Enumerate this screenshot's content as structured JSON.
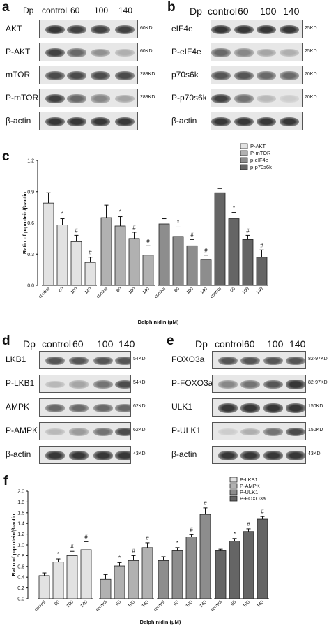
{
  "panel_a": {
    "letter": "a",
    "header": [
      "Dp",
      "control",
      "60",
      "100",
      "140"
    ],
    "rows": [
      {
        "label": "AKT",
        "size": "60KD",
        "levels": [
          0.85,
          0.8,
          0.8,
          0.8
        ]
      },
      {
        "label": "P-AKT",
        "size": "60KD",
        "levels": [
          0.8,
          0.6,
          0.4,
          0.25
        ]
      },
      {
        "label": "mTOR",
        "size": "289KD",
        "levels": [
          0.75,
          0.75,
          0.75,
          0.75
        ]
      },
      {
        "label": "P-mTOR",
        "size": "289KD",
        "levels": [
          0.8,
          0.6,
          0.45,
          0.3
        ]
      },
      {
        "label": "β-actin",
        "size": "",
        "levels": [
          0.85,
          0.85,
          0.85,
          0.85
        ]
      }
    ]
  },
  "panel_b": {
    "letter": "b",
    "header": [
      "Dp",
      "control",
      "60",
      "100",
      "140"
    ],
    "rows": [
      {
        "label": "eIF4e",
        "size": "25KD",
        "levels": [
          0.85,
          0.85,
          0.85,
          0.85
        ]
      },
      {
        "label": "P-eIF4e",
        "size": "25KD",
        "levels": [
          0.6,
          0.45,
          0.3,
          0.25
        ]
      },
      {
        "label": "p70s6k",
        "size": "70KD",
        "levels": [
          0.7,
          0.7,
          0.6,
          0.6
        ]
      },
      {
        "label": "P-p70s6k",
        "size": "70KD",
        "levels": [
          0.8,
          0.55,
          0.2,
          0.1
        ]
      },
      {
        "label": "β-actin",
        "size": "",
        "levels": [
          0.85,
          0.85,
          0.85,
          0.85
        ]
      }
    ]
  },
  "panel_d": {
    "letter": "d",
    "header": [
      "Dp",
      "control",
      "60",
      "100",
      "140"
    ],
    "rows": [
      {
        "label": "LKB1",
        "size": "54KD",
        "levels": [
          0.7,
          0.7,
          0.7,
          0.7
        ]
      },
      {
        "label": "P-LKB1",
        "size": "54KD",
        "levels": [
          0.2,
          0.3,
          0.55,
          0.75
        ]
      },
      {
        "label": "AMPK",
        "size": "62KD",
        "levels": [
          0.6,
          0.6,
          0.6,
          0.6
        ]
      },
      {
        "label": "P-AMPK",
        "size": "62KD",
        "levels": [
          0.2,
          0.35,
          0.55,
          0.75
        ]
      },
      {
        "label": "β-actin",
        "size": "43KD",
        "levels": [
          0.85,
          0.85,
          0.85,
          0.85
        ]
      }
    ]
  },
  "panel_e": {
    "letter": "e",
    "header": [
      "Dp",
      "control",
      "60",
      "100",
      "140"
    ],
    "rows": [
      {
        "label": "FOXO3a",
        "size": "82-97KD",
        "levels": [
          0.7,
          0.7,
          0.7,
          0.7
        ]
      },
      {
        "label": "P-FOXO3a",
        "size": "82-97KD",
        "levels": [
          0.45,
          0.55,
          0.7,
          0.85
        ]
      },
      {
        "label": "ULK1",
        "size": "150KD",
        "levels": [
          0.85,
          0.85,
          0.85,
          0.85
        ]
      },
      {
        "label": "P-ULK1",
        "size": "150KD",
        "levels": [
          0.1,
          0.25,
          0.55,
          0.75
        ]
      },
      {
        "label": "β-actin",
        "size": "43KD",
        "levels": [
          0.85,
          0.85,
          0.85,
          0.85
        ]
      }
    ]
  },
  "chart_data": [
    {
      "panel_letter": "c",
      "type": "bar",
      "xlabel": "Delphinidin (μM)",
      "ylabel": "Ratio of p-protein/β-actin",
      "ylim": [
        0,
        1.2
      ],
      "yticks": [
        0.0,
        0.3,
        0.6,
        0.9,
        1.2
      ],
      "categories": [
        "control",
        "60",
        "100",
        "140"
      ],
      "legend_position": "top-right",
      "series": [
        {
          "name": "P-AKT",
          "color": "#e2e2e2",
          "values": [
            0.79,
            0.58,
            0.42,
            0.22
          ],
          "errors": [
            0.1,
            0.06,
            0.06,
            0.05
          ],
          "marks": [
            "",
            "*",
            "#",
            "#"
          ]
        },
        {
          "name": "P-mTOR",
          "color": "#b1b1b1",
          "values": [
            0.65,
            0.57,
            0.45,
            0.29
          ],
          "errors": [
            0.12,
            0.09,
            0.06,
            0.09
          ],
          "marks": [
            "",
            "*",
            "#",
            "#"
          ]
        },
        {
          "name": "p-eIF4e",
          "color": "#8d8d8d",
          "values": [
            0.59,
            0.47,
            0.38,
            0.25
          ],
          "errors": [
            0.05,
            0.09,
            0.06,
            0.04
          ],
          "marks": [
            "",
            "*",
            "#",
            "#"
          ]
        },
        {
          "name": "p-p70s6k",
          "color": "#656565",
          "values": [
            0.89,
            0.64,
            0.44,
            0.27
          ],
          "errors": [
            0.04,
            0.06,
            0.04,
            0.07
          ],
          "marks": [
            "",
            "*",
            "#",
            "#"
          ]
        }
      ]
    },
    {
      "panel_letter": "f",
      "type": "bar",
      "xlabel": "Delphinidin (μM)",
      "ylabel": "Ratio of p-protein/β-actin",
      "ylim": [
        0,
        2.0
      ],
      "yticks": [
        0.0,
        0.2,
        0.4,
        0.6,
        0.8,
        1.0,
        1.2,
        1.4,
        1.6,
        1.8,
        2.0
      ],
      "categories": [
        "control",
        "60",
        "100",
        "140"
      ],
      "legend_position": "top-left",
      "series": [
        {
          "name": "P-LKB1",
          "color": "#e2e2e2",
          "values": [
            0.43,
            0.68,
            0.8,
            0.91
          ],
          "errors": [
            0.05,
            0.06,
            0.08,
            0.15
          ],
          "marks": [
            "",
            "*",
            "#",
            "#"
          ]
        },
        {
          "name": "P-AMPK",
          "color": "#b1b1b1",
          "values": [
            0.36,
            0.61,
            0.71,
            0.95
          ],
          "errors": [
            0.09,
            0.06,
            0.09,
            0.09
          ],
          "marks": [
            "",
            "*",
            "#",
            "#"
          ]
        },
        {
          "name": "P-ULK1",
          "color": "#8d8d8d",
          "values": [
            0.71,
            0.89,
            1.15,
            1.57
          ],
          "errors": [
            0.07,
            0.06,
            0.04,
            0.12
          ],
          "marks": [
            "",
            "*",
            "#",
            "#"
          ]
        },
        {
          "name": "P-FOXO3a",
          "color": "#656565",
          "values": [
            0.89,
            1.07,
            1.25,
            1.48
          ],
          "errors": [
            0.03,
            0.05,
            0.05,
            0.05
          ],
          "marks": [
            "",
            "*",
            "#",
            "#"
          ]
        }
      ]
    }
  ]
}
